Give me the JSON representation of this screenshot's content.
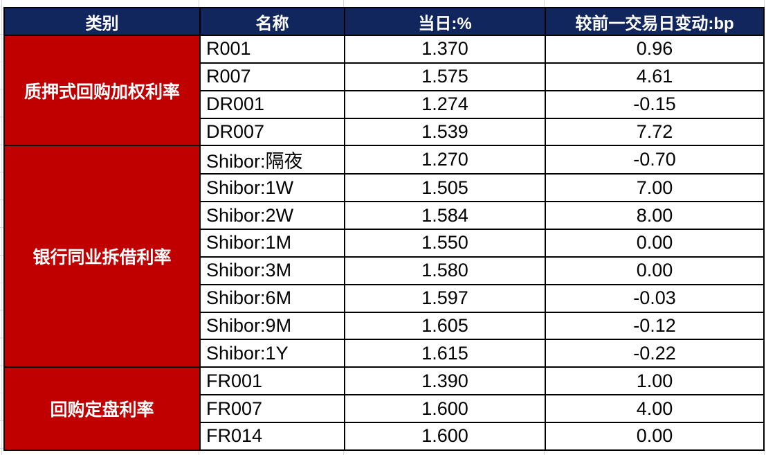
{
  "table": {
    "headers": [
      "类别",
      "名称",
      "当日:%",
      "较前一交易日变动:bp"
    ],
    "groups": [
      {
        "category": "质押式回购加权利率",
        "rows": [
          {
            "name": "R001",
            "today": "1.370",
            "change": "0.96"
          },
          {
            "name": "R007",
            "today": "1.575",
            "change": "4.61"
          },
          {
            "name": "DR001",
            "today": "1.274",
            "change": "-0.15"
          },
          {
            "name": "DR007",
            "today": "1.539",
            "change": "7.72"
          }
        ]
      },
      {
        "category": "银行同业拆借利率",
        "rows": [
          {
            "name": "Shibor:隔夜",
            "today": "1.270",
            "change": "-0.70"
          },
          {
            "name": "Shibor:1W",
            "today": "1.505",
            "change": "7.00"
          },
          {
            "name": "Shibor:2W",
            "today": "1.584",
            "change": "8.00"
          },
          {
            "name": "Shibor:1M",
            "today": "1.550",
            "change": "0.00"
          },
          {
            "name": "Shibor:3M",
            "today": "1.580",
            "change": "0.00"
          },
          {
            "name": "Shibor:6M",
            "today": "1.597",
            "change": "-0.03"
          },
          {
            "name": "Shibor:9M",
            "today": "1.605",
            "change": "-0.12"
          },
          {
            "name": "Shibor:1Y",
            "today": "1.615",
            "change": "-0.22"
          }
        ]
      },
      {
        "category": "回购定盘利率",
        "rows": [
          {
            "name": "FR001",
            "today": "1.390",
            "change": "1.00"
          },
          {
            "name": "FR007",
            "today": "1.600",
            "change": "4.00"
          },
          {
            "name": "FR014",
            "today": "1.600",
            "change": "0.00"
          }
        ]
      }
    ],
    "colors": {
      "header_bg": "#12265E",
      "header_text": "#FFFFFF",
      "category_bg": "#C00000",
      "category_text": "#FFFFFF",
      "border": "#000000",
      "data_text": "#000000"
    }
  },
  "chart_data": {
    "type": "table",
    "title": "",
    "columns": [
      "类别",
      "名称",
      "当日:%",
      "较前一交易日变动:bp"
    ],
    "rows": [
      [
        "质押式回购加权利率",
        "R001",
        1.37,
        0.96
      ],
      [
        "质押式回购加权利率",
        "R007",
        1.575,
        4.61
      ],
      [
        "质押式回购加权利率",
        "DR001",
        1.274,
        -0.15
      ],
      [
        "质押式回购加权利率",
        "DR007",
        1.539,
        7.72
      ],
      [
        "银行同业拆借利率",
        "Shibor:隔夜",
        1.27,
        -0.7
      ],
      [
        "银行同业拆借利率",
        "Shibor:1W",
        1.505,
        7.0
      ],
      [
        "银行同业拆借利率",
        "Shibor:2W",
        1.584,
        8.0
      ],
      [
        "银行同业拆借利率",
        "Shibor:1M",
        1.55,
        0.0
      ],
      [
        "银行同业拆借利率",
        "Shibor:3M",
        1.58,
        0.0
      ],
      [
        "银行同业拆借利率",
        "Shibor:6M",
        1.597,
        -0.03
      ],
      [
        "银行同业拆借利率",
        "Shibor:9M",
        1.605,
        -0.12
      ],
      [
        "银行同业拆借利率",
        "Shibor:1Y",
        1.615,
        -0.22
      ],
      [
        "回购定盘利率",
        "FR001",
        1.39,
        1.0
      ],
      [
        "回购定盘利率",
        "FR007",
        1.6,
        4.0
      ],
      [
        "回购定盘利率",
        "FR014",
        1.6,
        0.0
      ]
    ]
  }
}
